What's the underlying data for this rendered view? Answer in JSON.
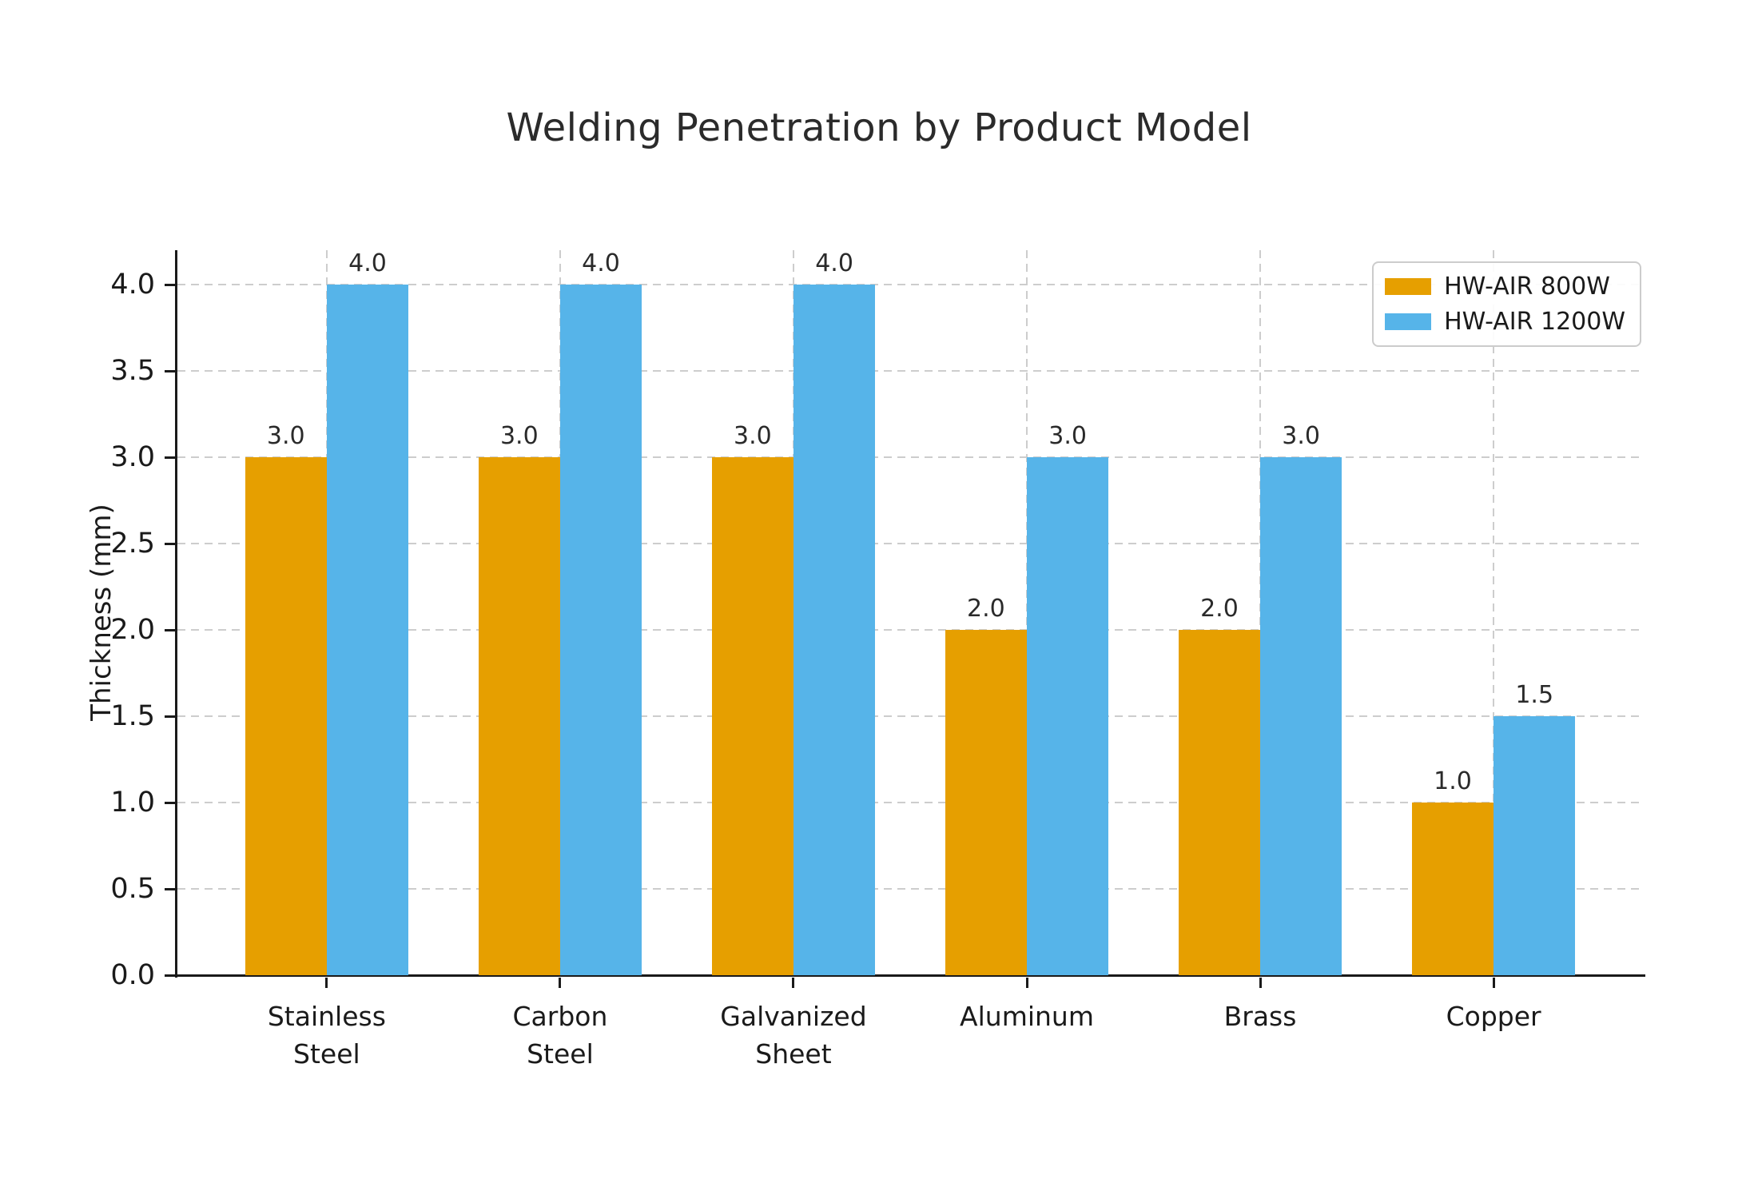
{
  "chart_data": {
    "type": "bar",
    "title": "Welding Penetration by Product Model",
    "xlabel": "",
    "ylabel": "Thickness (mm)",
    "categories": [
      "Stainless Steel",
      "Carbon Steel",
      "Galvanized Sheet",
      "Aluminum",
      "Brass",
      "Copper"
    ],
    "category_label_lines": [
      [
        "Stainless",
        "Steel"
      ],
      [
        "Carbon",
        "Steel"
      ],
      [
        "Galvanized",
        "Sheet"
      ],
      [
        "Aluminum"
      ],
      [
        "Brass"
      ],
      [
        "Copper"
      ]
    ],
    "series": [
      {
        "name": "HW-AIR 800W",
        "color": "#E69F00",
        "values": [
          3.0,
          3.0,
          3.0,
          2.0,
          2.0,
          1.0
        ]
      },
      {
        "name": "HW-AIR 1200W",
        "color": "#56B4E9",
        "values": [
          4.0,
          4.0,
          4.0,
          3.0,
          3.0,
          1.5
        ]
      }
    ],
    "bar_value_labels": true,
    "value_label_format_decimals": 1,
    "yticks": [
      0.0,
      0.5,
      1.0,
      1.5,
      2.0,
      2.5,
      3.0,
      3.5,
      4.0
    ],
    "ylim": [
      0,
      4.2
    ],
    "grid": true,
    "grid_style": "dashed",
    "legend_position": "upper right",
    "colors": {
      "grid": "#cdcdcd",
      "axis": "#1a1a1a",
      "title_text": "#2b2b2b",
      "label_text": "#1a1a1a"
    }
  }
}
